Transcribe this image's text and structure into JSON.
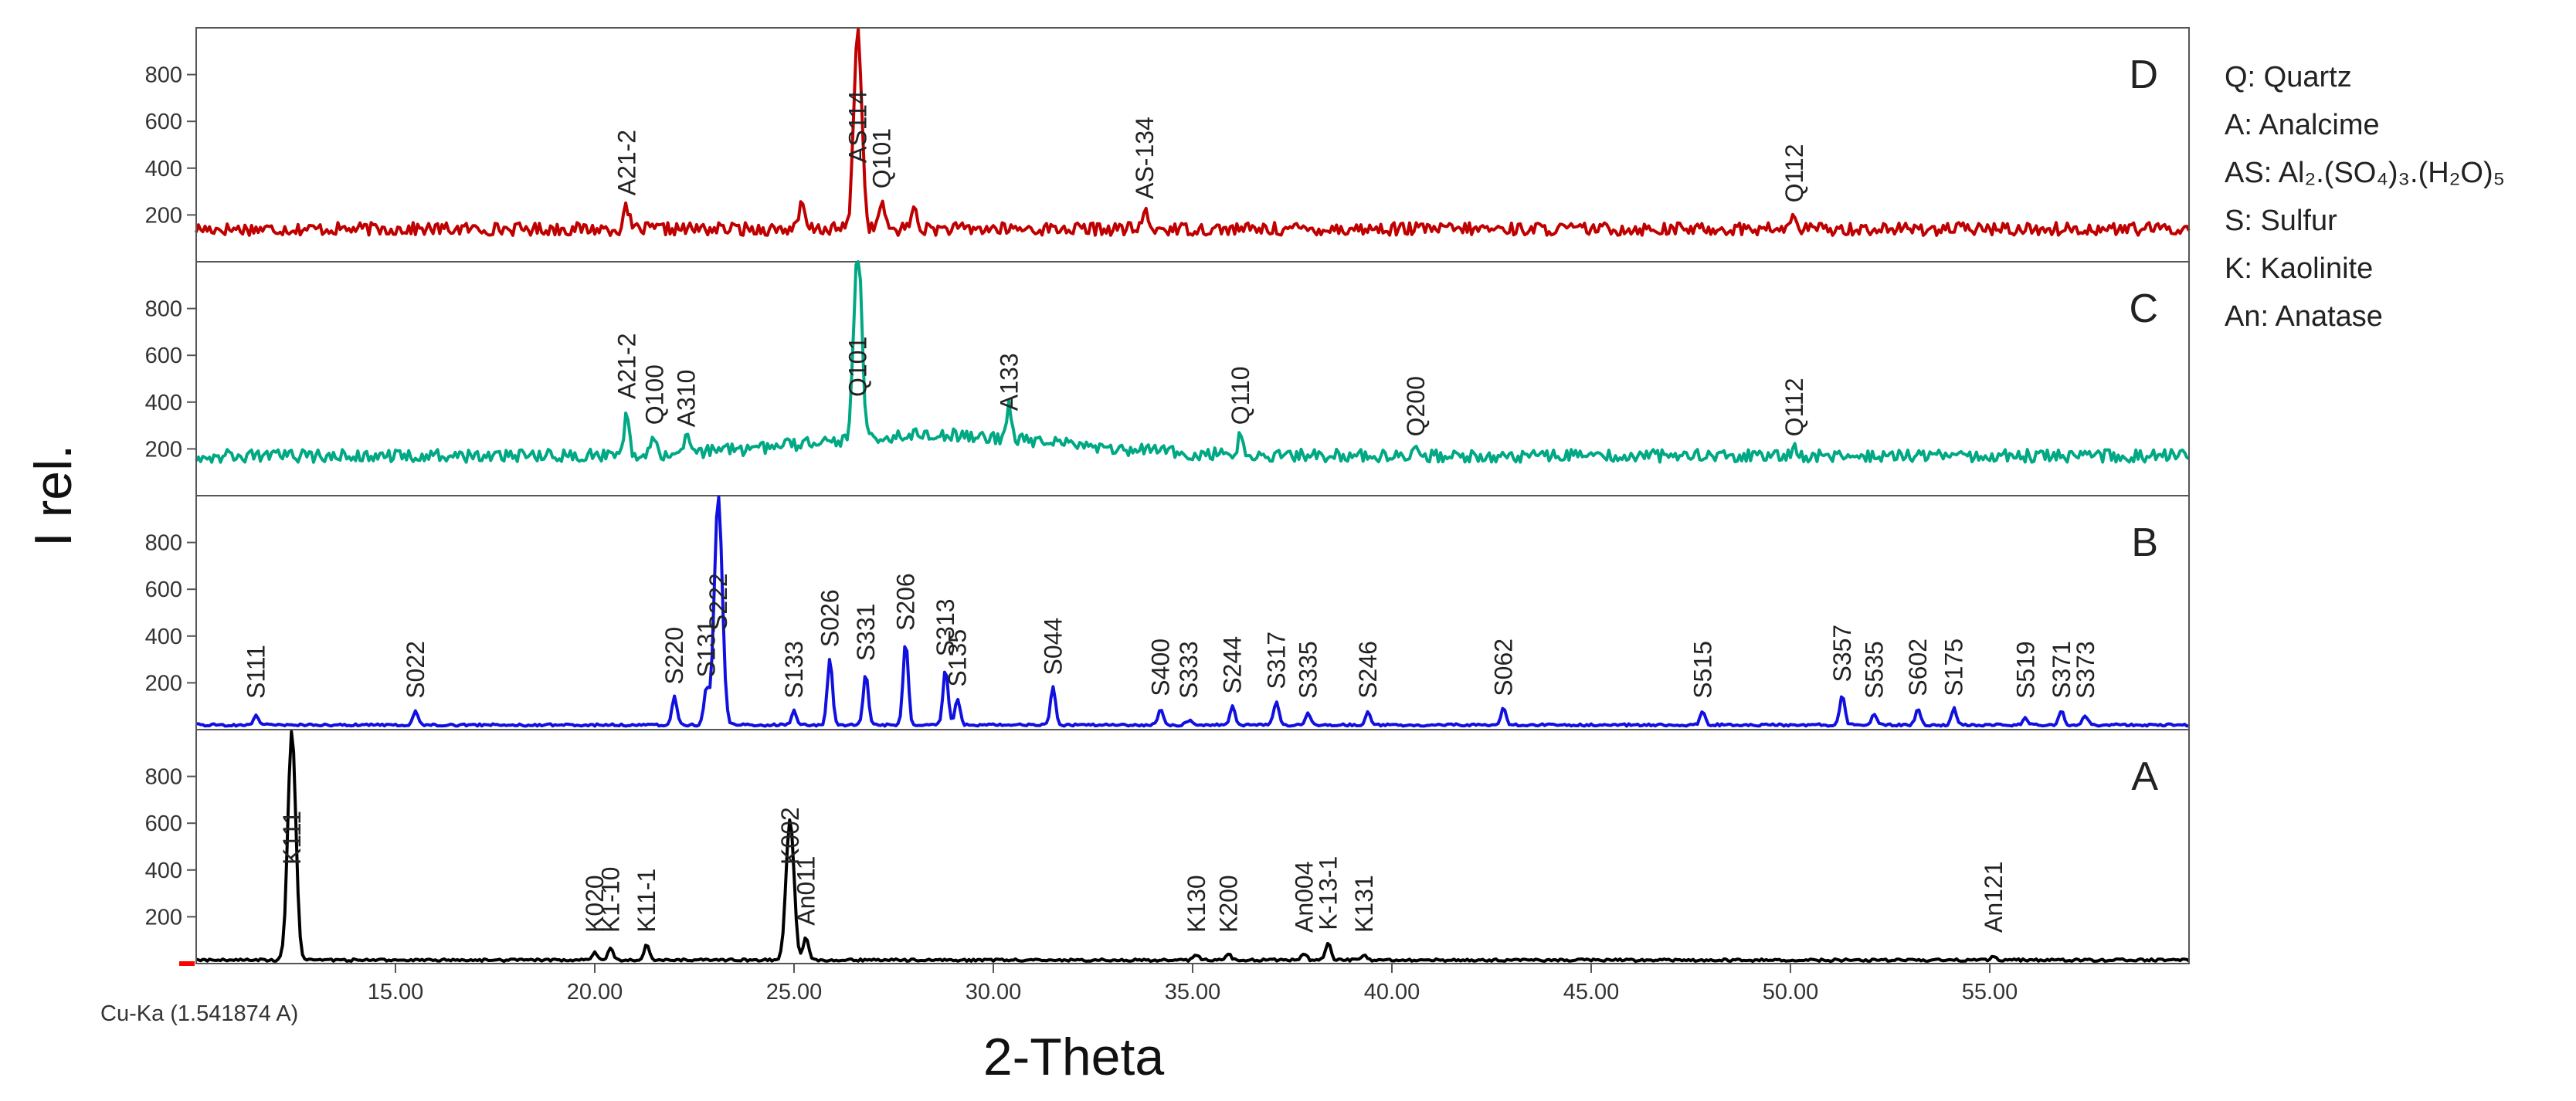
{
  "chart_data": {
    "type": "line",
    "xlabel": "2-Theta",
    "ylabel": "I rel.",
    "xlim": [
      10.0,
      60.0
    ],
    "ylim": [
      0,
      1000
    ],
    "x_ticks": [
      "15.00",
      "20.00",
      "25.00",
      "30.00",
      "35.00",
      "40.00",
      "45.00",
      "50.00",
      "55.00"
    ],
    "y_ticks": [
      "200",
      "400",
      "600",
      "800"
    ],
    "radiation_label": "Cu-Ka (1.541874 A)",
    "legend": [
      {
        "code": "Q",
        "text": "Q: Quartz"
      },
      {
        "code": "A",
        "text": "A: Analcime"
      },
      {
        "code": "AS",
        "text": "AS: Al₂.(SO₄)₃.(H₂O)₅"
      },
      {
        "code": "S",
        "text": "S: Sulfur"
      },
      {
        "code": "K",
        "text": "K: Kaolinite"
      },
      {
        "code": "An",
        "text": "An: Anatase"
      }
    ],
    "panels": [
      {
        "name": "D",
        "color": "#c00000",
        "base": 140,
        "peaks": [
          {
            "x": 20.8,
            "y": 230,
            "label": "A21-2"
          },
          {
            "x": 25.2,
            "y": 250,
            "label": ""
          },
          {
            "x": 26.6,
            "y": 1000,
            "label": "AS114"
          },
          {
            "x": 27.2,
            "y": 260,
            "label": "Q101"
          },
          {
            "x": 28.0,
            "y": 240,
            "label": ""
          },
          {
            "x": 33.8,
            "y": 215,
            "label": "AS-134"
          },
          {
            "x": 50.1,
            "y": 200,
            "label": "Q112"
          }
        ]
      },
      {
        "name": "C",
        "color": "#00a884",
        "base": 170,
        "peaks": [
          {
            "x": 20.8,
            "y": 360,
            "label": "A21-2"
          },
          {
            "x": 21.5,
            "y": 250,
            "label": "Q100"
          },
          {
            "x": 22.3,
            "y": 240,
            "label": "A310"
          },
          {
            "x": 26.6,
            "y": 1000,
            "label": "Q101"
          },
          {
            "x": 30.4,
            "y": 310,
            "label": "A133"
          },
          {
            "x": 36.2,
            "y": 250,
            "label": "Q110"
          },
          {
            "x": 40.6,
            "y": 200,
            "label": "Q200"
          },
          {
            "x": 50.1,
            "y": 200,
            "label": "Q112"
          }
        ]
      },
      {
        "name": "B",
        "color": "#1010e0",
        "base": 20,
        "peaks": [
          {
            "x": 11.5,
            "y": 60,
            "label": "S111"
          },
          {
            "x": 15.5,
            "y": 80,
            "label": "S022"
          },
          {
            "x": 22.0,
            "y": 140,
            "label": "S220"
          },
          {
            "x": 22.8,
            "y": 170,
            "label": "S131"
          },
          {
            "x": 23.1,
            "y": 1000,
            "label": "S222"
          },
          {
            "x": 25.0,
            "y": 80,
            "label": "S133"
          },
          {
            "x": 25.9,
            "y": 300,
            "label": "S026"
          },
          {
            "x": 26.8,
            "y": 240,
            "label": "S331"
          },
          {
            "x": 27.8,
            "y": 380,
            "label": "S206"
          },
          {
            "x": 28.8,
            "y": 260,
            "label": "S313"
          },
          {
            "x": 29.1,
            "y": 130,
            "label": "S135"
          },
          {
            "x": 31.5,
            "y": 180,
            "label": "S044"
          },
          {
            "x": 34.2,
            "y": 90,
            "label": "S400"
          },
          {
            "x": 34.9,
            "y": 40,
            "label": "S333"
          },
          {
            "x": 36.0,
            "y": 100,
            "label": "S244"
          },
          {
            "x": 37.1,
            "y": 120,
            "label": "S317"
          },
          {
            "x": 37.9,
            "y": 70,
            "label": "S335"
          },
          {
            "x": 39.4,
            "y": 80,
            "label": "S246"
          },
          {
            "x": 42.8,
            "y": 90,
            "label": "S062"
          },
          {
            "x": 47.8,
            "y": 80,
            "label": "S515"
          },
          {
            "x": 51.3,
            "y": 150,
            "label": "S357"
          },
          {
            "x": 52.1,
            "y": 70,
            "label": "S535"
          },
          {
            "x": 53.2,
            "y": 90,
            "label": "S602"
          },
          {
            "x": 54.1,
            "y": 90,
            "label": "S175"
          },
          {
            "x": 55.9,
            "y": 50,
            "label": "S519"
          },
          {
            "x": 56.8,
            "y": 80,
            "label": "S371"
          },
          {
            "x": 57.4,
            "y": 60,
            "label": "S373"
          }
        ]
      },
      {
        "name": "A",
        "color": "#000000",
        "base": 15,
        "peaks": [
          {
            "x": 12.4,
            "y": 1000,
            "label": "K111"
          },
          {
            "x": 20.0,
            "y": 50,
            "label": "K020"
          },
          {
            "x": 20.4,
            "y": 70,
            "label": "K1-10"
          },
          {
            "x": 21.3,
            "y": 80,
            "label": "K11-1"
          },
          {
            "x": 24.9,
            "y": 620,
            "label": "K002"
          },
          {
            "x": 25.3,
            "y": 110,
            "label": "An011"
          },
          {
            "x": 35.1,
            "y": 35,
            "label": "K130"
          },
          {
            "x": 35.9,
            "y": 40,
            "label": "K200"
          },
          {
            "x": 37.8,
            "y": 45,
            "label": "An004"
          },
          {
            "x": 38.4,
            "y": 90,
            "label": "K-13-1"
          },
          {
            "x": 39.3,
            "y": 40,
            "label": "K131"
          },
          {
            "x": 55.1,
            "y": 30,
            "label": "An121"
          }
        ]
      }
    ]
  }
}
